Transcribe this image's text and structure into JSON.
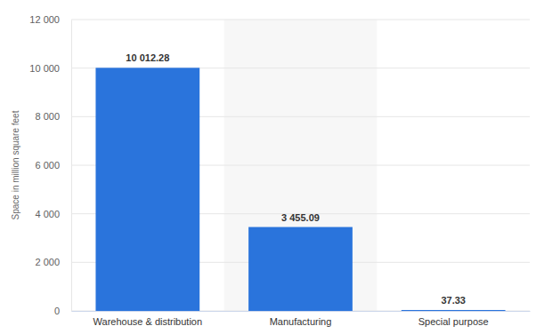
{
  "chart_data": {
    "type": "bar",
    "categories": [
      "Warehouse & distribution",
      "Manufacturing",
      "Special purpose"
    ],
    "values": [
      10012.28,
      3455.09,
      37.33
    ],
    "value_labels": [
      "10 012.28",
      "3 455.09",
      "37.33"
    ],
    "color": "#2a74dc",
    "ylabel": "Space in million square feet",
    "ylim": [
      0,
      12000
    ],
    "yticks": [
      0,
      {
        "value": 2000,
        "label": "2 000"
      },
      {
        "value": 4000,
        "label": "4 000"
      },
      {
        "value": 6000,
        "label": "6 000"
      },
      {
        "value": 8000,
        "label": "8 000"
      },
      {
        "value": 10000,
        "label": "10 000"
      },
      {
        "value": 12000,
        "label": "12 000"
      }
    ],
    "grid": true,
    "data_labels": true
  }
}
